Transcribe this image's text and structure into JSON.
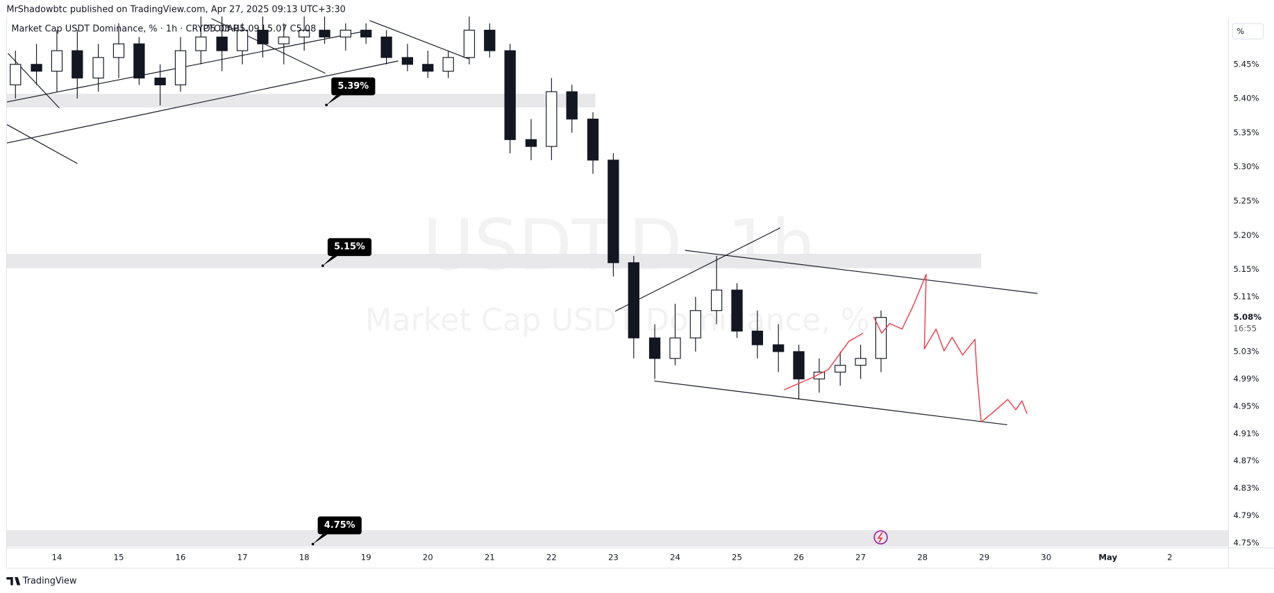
{
  "chart_data": {
    "type": "candlestick",
    "published": "MrShadowbtc published on TradingView.com, Apr 27, 2025 09:13 UTC+3:30",
    "title": "Market Cap USDT Dominance, % · 1h · CRYPTOCAP",
    "ohlc_text": "O5.08 H5.09 L5.07 C5.08",
    "watermark": "USDT.D, 1h",
    "watermark_subtitle": "Market Cap USDT Dominance, %",
    "brand": "TradingView",
    "axis_unit": "%",
    "xlim": [
      13.185,
      32.95
    ],
    "ylim": [
      4.743,
      5.518
    ],
    "xticks": [
      14,
      15,
      16,
      17,
      18,
      19,
      20,
      21,
      22,
      23,
      24,
      25,
      26,
      27,
      28,
      29,
      30,
      {
        "value": 31,
        "label": "May"
      },
      {
        "value": 32,
        "label": "2"
      }
    ],
    "yticks": [
      {
        "value": 5.45,
        "label": "5.45%"
      },
      {
        "value": 5.4,
        "label": "5.40%"
      },
      {
        "value": 5.35,
        "label": "5.35%"
      },
      {
        "value": 5.3,
        "label": "5.30%"
      },
      {
        "value": 5.25,
        "label": "5.25%"
      },
      {
        "value": 5.2,
        "label": "5.20%"
      },
      {
        "value": 5.15,
        "label": "5.15%"
      },
      {
        "value": 5.11,
        "label": "5.11%"
      },
      {
        "value": 5.03,
        "label": "5.03%"
      },
      {
        "value": 4.99,
        "label": "4.99%"
      },
      {
        "value": 4.95,
        "label": "4.95%"
      },
      {
        "value": 4.91,
        "label": "4.91%"
      },
      {
        "value": 4.87,
        "label": "4.87%"
      },
      {
        "value": 4.83,
        "label": "4.83%"
      },
      {
        "value": 4.79,
        "label": "4.79%"
      },
      {
        "value": 4.75,
        "label": "4.75%"
      }
    ],
    "last_price": {
      "value": 5.08,
      "label": "5.08%"
    },
    "countdown": "16:55",
    "up_color": "#ffffff",
    "down_color": "#131722",
    "line_color": "#131722",
    "zone_color": "#e8e8ea",
    "x": [
      13.33,
      13.67,
      14.0,
      14.33,
      14.67,
      15.0,
      15.33,
      15.67,
      16.0,
      16.33,
      16.67,
      17.0,
      17.33,
      17.67,
      18.0,
      18.33,
      18.67,
      19.0,
      19.33,
      19.67,
      20.0,
      20.33,
      20.67,
      21.0,
      21.33,
      21.67,
      22.0,
      22.33,
      22.67,
      23.0,
      23.33,
      23.67,
      24.0,
      24.33,
      24.67,
      25.0,
      25.33,
      25.67,
      26.0,
      26.33,
      26.67,
      27.0,
      27.33
    ],
    "candles": [
      [
        5.42,
        5.47,
        5.4,
        5.45
      ],
      [
        5.45,
        5.48,
        5.42,
        5.44
      ],
      [
        5.44,
        5.5,
        5.41,
        5.47
      ],
      [
        5.47,
        5.5,
        5.4,
        5.43
      ],
      [
        5.43,
        5.48,
        5.41,
        5.46
      ],
      [
        5.46,
        5.51,
        5.43,
        5.48
      ],
      [
        5.48,
        5.49,
        5.42,
        5.43
      ],
      [
        5.43,
        5.45,
        5.39,
        5.42
      ],
      [
        5.42,
        5.49,
        5.41,
        5.47
      ],
      [
        5.47,
        5.52,
        5.45,
        5.49
      ],
      [
        5.49,
        5.52,
        5.44,
        5.47
      ],
      [
        5.47,
        5.51,
        5.45,
        5.5
      ],
      [
        5.5,
        5.52,
        5.46,
        5.48
      ],
      [
        5.48,
        5.51,
        5.45,
        5.49
      ],
      [
        5.49,
        5.52,
        5.47,
        5.5
      ],
      [
        5.5,
        5.52,
        5.48,
        5.49
      ],
      [
        5.49,
        5.51,
        5.47,
        5.5
      ],
      [
        5.5,
        5.51,
        5.48,
        5.49
      ],
      [
        5.49,
        5.5,
        5.45,
        5.46
      ],
      [
        5.46,
        5.48,
        5.44,
        5.45
      ],
      [
        5.45,
        5.47,
        5.43,
        5.44
      ],
      [
        5.44,
        5.47,
        5.43,
        5.46
      ],
      [
        5.46,
        5.52,
        5.45,
        5.5
      ],
      [
        5.5,
        5.51,
        5.46,
        5.47
      ],
      [
        5.47,
        5.48,
        5.32,
        5.34
      ],
      [
        5.34,
        5.37,
        5.31,
        5.33
      ],
      [
        5.33,
        5.43,
        5.31,
        5.41
      ],
      [
        5.41,
        5.42,
        5.35,
        5.37
      ],
      [
        5.37,
        5.38,
        5.29,
        5.31
      ],
      [
        5.31,
        5.32,
        5.14,
        5.16
      ],
      [
        5.16,
        5.17,
        5.02,
        5.05
      ],
      [
        5.05,
        5.07,
        4.99,
        5.02
      ],
      [
        5.02,
        5.1,
        5.01,
        5.05
      ],
      [
        5.05,
        5.11,
        5.03,
        5.09
      ],
      [
        5.09,
        5.17,
        5.07,
        5.12
      ],
      [
        5.12,
        5.13,
        5.05,
        5.06
      ],
      [
        5.06,
        5.09,
        5.02,
        5.04
      ],
      [
        5.04,
        5.07,
        5.0,
        5.03
      ],
      [
        5.03,
        5.04,
        4.96,
        4.99
      ],
      [
        4.99,
        5.02,
        4.97,
        5.0
      ],
      [
        5.0,
        5.03,
        4.98,
        5.01
      ],
      [
        5.01,
        5.04,
        4.99,
        5.02
      ],
      [
        5.02,
        5.09,
        5.0,
        5.08
      ]
    ],
    "zones": [
      {
        "label": "5.39%",
        "low": 5.387,
        "high": 5.407,
        "x_end": 22.71,
        "anchor_x": 18.36
      },
      {
        "label": "5.15%",
        "low": 5.152,
        "high": 5.173,
        "x_end": 28.95,
        "anchor_x": 18.3
      },
      {
        "label": "4.75%",
        "low": 4.745,
        "high": 4.769,
        "anchor_x": 18.14
      }
    ],
    "trend_lines": [
      {
        "x": [
          24.16,
          29.86
        ],
        "y": [
          5.178,
          5.115
        ]
      },
      {
        "x": [
          23.66,
          29.37
        ],
        "y": [
          4.987,
          4.923
        ]
      },
      {
        "x": [
          23.03,
          25.7
        ],
        "y": [
          5.089,
          5.211
        ]
      },
      {
        "x": [
          13.19,
          19.52
        ],
        "y": [
          5.335,
          5.455
        ]
      },
      {
        "x": [
          13.19,
          19.06
        ],
        "y": [
          5.395,
          5.5
        ]
      },
      {
        "x": [
          13.19,
          14.33
        ],
        "y": [
          5.362,
          5.305
        ]
      },
      {
        "x": [
          13.21,
          14.04
        ],
        "y": [
          5.466,
          5.386
        ]
      },
      {
        "x": [
          16.5,
          18.34
        ],
        "y": [
          5.517,
          5.437
        ]
      },
      {
        "x": [
          19.06,
          20.66
        ],
        "y": [
          5.514,
          5.458
        ]
      }
    ],
    "projections": [
      {
        "color": "#f23645",
        "x": [
          25.76,
          26.22,
          26.48,
          26.81,
          27.04
        ],
        "y": [
          4.974,
          4.992,
          5.004,
          5.045,
          5.057
        ]
      },
      {
        "color": "#f23645",
        "x": [
          27.21,
          27.34,
          27.47,
          27.67,
          27.86,
          28.06,
          28.03,
          28.22,
          28.35,
          28.48,
          28.65,
          28.85,
          28.88,
          28.95,
          29.14,
          29.38,
          29.51,
          29.61,
          29.69
        ],
        "y": [
          5.081,
          5.057,
          5.071,
          5.063,
          5.099,
          5.143,
          5.034,
          5.063,
          5.031,
          5.051,
          5.025,
          5.048,
          4.998,
          4.927,
          4.941,
          4.96,
          4.945,
          4.958,
          4.939
        ]
      }
    ]
  }
}
